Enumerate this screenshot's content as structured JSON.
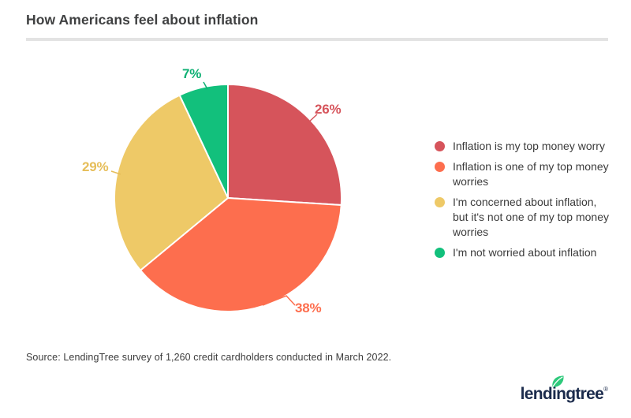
{
  "header": {
    "title": "How Americans feel about inflation"
  },
  "chart_data": {
    "type": "pie",
    "title": "How Americans feel about inflation",
    "start_angle_deg": 0,
    "direction": "clockwise",
    "legend_position": "right",
    "slices": [
      {
        "label": "Inflation is my top money worry",
        "value": 26,
        "display": "26%",
        "color": "#d6545b",
        "label_color": "#d6545b"
      },
      {
        "label": "Inflation is one of my top money worries",
        "value": 38,
        "display": "38%",
        "color": "#fd6e4e",
        "label_color": "#fd6e4e"
      },
      {
        "label": "I'm concerned about inflation, but it's not one of my top money worries",
        "value": 29,
        "display": "29%",
        "color": "#eec967",
        "label_color": "#e6be5a"
      },
      {
        "label": "I'm not worried about inflation",
        "value": 7,
        "display": "7%",
        "color": "#12c07c",
        "label_color": "#0fb074"
      }
    ]
  },
  "legend": {
    "items": [
      {
        "label": "Inflation is my top money worry"
      },
      {
        "label": "Inflation is one of my top money\nworries"
      },
      {
        "label": "I'm concerned about inflation,\nbut it's not one of my top money\nworries"
      },
      {
        "label": "I'm not worried about inflation"
      }
    ]
  },
  "footer": {
    "source": "Source: LendingTree survey of 1,260 credit cardholders conducted in March 2022."
  },
  "logo": {
    "text": "lendingtree",
    "registered": "®",
    "brand_color": "#1b2b4c",
    "leaf_color": "#2ec97b"
  }
}
